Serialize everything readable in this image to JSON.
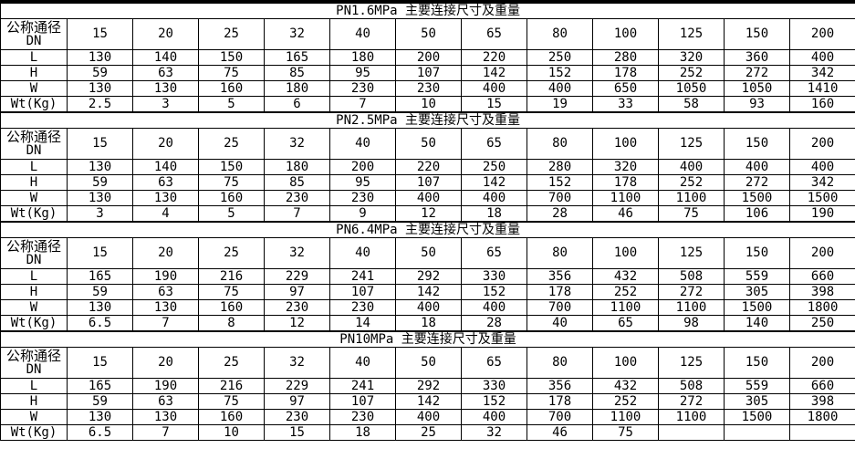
{
  "colors": {
    "background": "#ffffff",
    "text": "#000000",
    "border": "#000000",
    "top_bar": "#000000"
  },
  "table": {
    "corner_label_top": "公称通径",
    "corner_label_bottom": "DN",
    "columns": [
      "15",
      "20",
      "25",
      "32",
      "40",
      "50",
      "65",
      "80",
      "100",
      "125",
      "150",
      "200"
    ],
    "sections": [
      {
        "title": "PN1.6MPa  主要连接尺寸及重量",
        "rows": [
          {
            "label": "L",
            "values": [
              "130",
              "140",
              "150",
              "165",
              "180",
              "200",
              "220",
              "250",
              "280",
              "320",
              "360",
              "400"
            ]
          },
          {
            "label": "H",
            "values": [
              "59",
              "63",
              "75",
              "85",
              "95",
              "107",
              "142",
              "152",
              "178",
              "252",
              "272",
              "342"
            ]
          },
          {
            "label": "W",
            "values": [
              "130",
              "130",
              "160",
              "180",
              "230",
              "230",
              "400",
              "400",
              "650",
              "1050",
              "1050",
              "1410"
            ]
          },
          {
            "label": "Wt(Kg)",
            "values": [
              "2.5",
              "3",
              "5",
              "6",
              "7",
              "10",
              "15",
              "19",
              "33",
              "58",
              "93",
              "160"
            ]
          }
        ]
      },
      {
        "title": "PN2.5MPa  主要连接尺寸及重量",
        "rows": [
          {
            "label": "L",
            "values": [
              "130",
              "140",
              "150",
              "180",
              "200",
              "220",
              "250",
              "280",
              "320",
              "400",
              "400",
              "400"
            ]
          },
          {
            "label": "H",
            "values": [
              "59",
              "63",
              "75",
              "85",
              "95",
              "107",
              "142",
              "152",
              "178",
              "252",
              "272",
              "342"
            ]
          },
          {
            "label": "W",
            "values": [
              "130",
              "130",
              "160",
              "230",
              "230",
              "400",
              "400",
              "700",
              "1100",
              "1100",
              "1500",
              "1500"
            ]
          },
          {
            "label": "Wt(Kg)",
            "values": [
              "3",
              "4",
              "5",
              "7",
              "9",
              "12",
              "18",
              "28",
              "46",
              "75",
              "106",
              "190"
            ]
          }
        ]
      },
      {
        "title": "PN6.4MPa  主要连接尺寸及重量",
        "rows": [
          {
            "label": "L",
            "values": [
              "165",
              "190",
              "216",
              "229",
              "241",
              "292",
              "330",
              "356",
              "432",
              "508",
              "559",
              "660"
            ]
          },
          {
            "label": "H",
            "values": [
              "59",
              "63",
              "75",
              "97",
              "107",
              "142",
              "152",
              "178",
              "252",
              "272",
              "305",
              "398"
            ]
          },
          {
            "label": "W",
            "values": [
              "130",
              "130",
              "160",
              "230",
              "230",
              "400",
              "400",
              "700",
              "1100",
              "1100",
              "1500",
              "1800"
            ]
          },
          {
            "label": "Wt(Kg)",
            "values": [
              "6.5",
              "7",
              "8",
              "12",
              "14",
              "18",
              "28",
              "40",
              "65",
              "98",
              "140",
              "250"
            ]
          }
        ]
      },
      {
        "title": "PN10MPa  主要连接尺寸及重量",
        "rows": [
          {
            "label": "L",
            "values": [
              "165",
              "190",
              "216",
              "229",
              "241",
              "292",
              "330",
              "356",
              "432",
              "508",
              "559",
              "660"
            ]
          },
          {
            "label": "H",
            "values": [
              "59",
              "63",
              "75",
              "97",
              "107",
              "142",
              "152",
              "178",
              "252",
              "272",
              "305",
              "398"
            ]
          },
          {
            "label": "W",
            "values": [
              "130",
              "130",
              "160",
              "230",
              "230",
              "400",
              "400",
              "700",
              "1100",
              "1100",
              "1500",
              "1800"
            ]
          },
          {
            "label": "Wt(Kg)",
            "values": [
              "6.5",
              "7",
              "10",
              "15",
              "18",
              "25",
              "32",
              "46",
              "75",
              "",
              "",
              ""
            ]
          }
        ]
      }
    ]
  }
}
